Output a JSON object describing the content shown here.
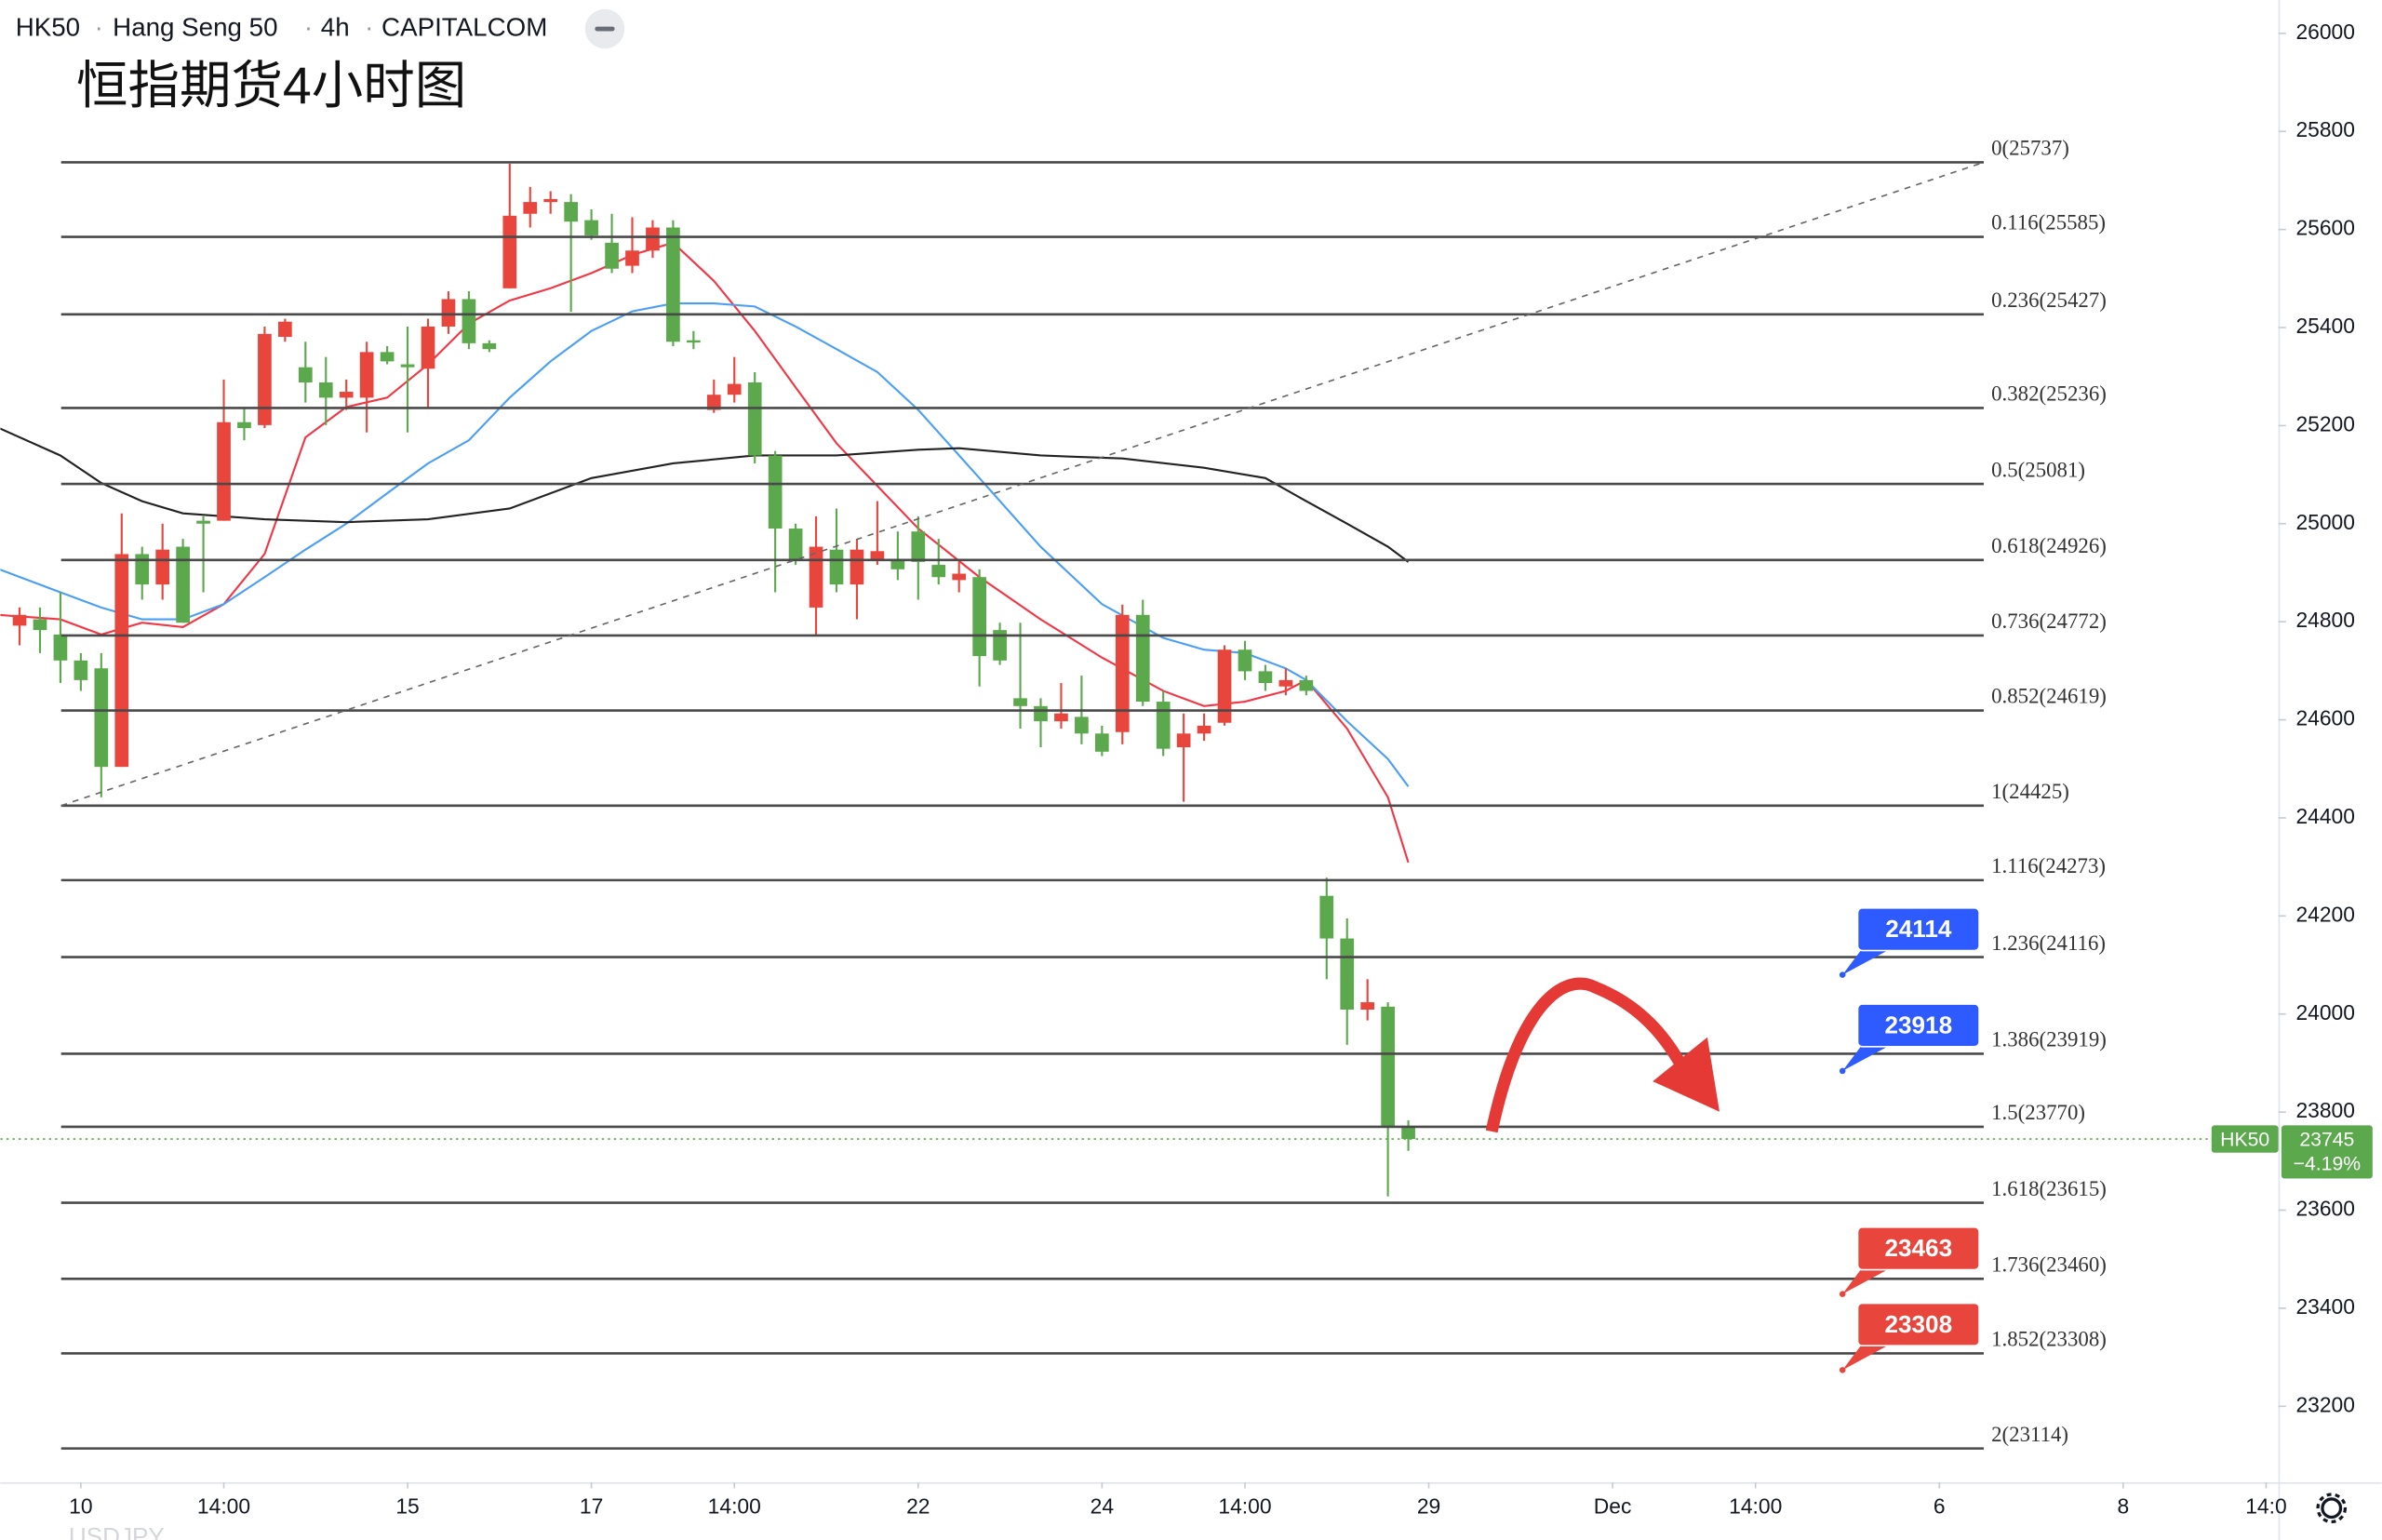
{
  "header": {
    "symbol": "HK50",
    "name": "Hang Seng 50",
    "interval": "4h",
    "source": "CAPITALCOM",
    "footer_text": "USDJPY"
  },
  "chart_data": {
    "type": "candlestick",
    "title": "恒指期货4小时图",
    "up_color": "#e8453c",
    "down_color": "#5ba84d",
    "xlim": [
      -3.94,
      107.6
    ],
    "ylim": [
      23045,
      26068
    ],
    "xticks": [
      {
        "value": 0,
        "label": "10"
      },
      {
        "value": 7,
        "label": "14:00"
      },
      {
        "value": 16,
        "label": "15"
      },
      {
        "value": 25,
        "label": "17"
      },
      {
        "value": 32,
        "label": "14:00"
      },
      {
        "value": 41,
        "label": "22"
      },
      {
        "value": 50,
        "label": "24"
      },
      {
        "value": 57,
        "label": "14:00"
      },
      {
        "value": 66,
        "label": "29"
      },
      {
        "value": 75,
        "label": "Dec"
      },
      {
        "value": 82,
        "label": "14:00"
      },
      {
        "value": 91,
        "label": "6"
      },
      {
        "value": 100,
        "label": "8"
      },
      {
        "value": 107,
        "label": "14:0"
      }
    ],
    "yticks": [
      23200,
      23400,
      23600,
      23800,
      24000,
      24200,
      24400,
      24600,
      24800,
      25000,
      25200,
      25400,
      25600,
      25800,
      26000
    ],
    "x": [
      -3,
      -2,
      -1,
      0,
      1,
      2,
      3,
      4,
      5,
      6,
      7,
      8,
      9,
      10,
      11,
      12,
      13,
      14,
      15,
      16,
      17,
      18,
      19,
      20,
      21,
      22,
      23,
      24,
      25,
      26,
      27,
      28,
      29,
      30,
      31,
      32,
      33,
      34,
      35,
      36,
      37,
      38,
      39,
      40,
      41,
      42,
      43,
      44,
      45,
      46,
      47,
      48,
      49,
      50,
      51,
      52,
      53,
      54,
      55,
      56,
      57,
      58,
      59,
      60,
      61,
      62,
      63,
      64,
      65
    ],
    "open": [
      24792,
      24805,
      24774,
      24721,
      24705,
      24504,
      24938,
      24876,
      24953,
      25006,
      25006,
      25207,
      25201,
      25381,
      25319,
      25288,
      25257,
      25257,
      25350,
      25325,
      25316,
      25402,
      25458,
      25368,
      25480,
      25632,
      25656,
      25656,
      25619,
      25573,
      25526,
      25557,
      25604,
      25374,
      25232,
      25263,
      25288,
      25139,
      24990,
      24829,
      24947,
      24876,
      24928,
      24928,
      24984,
      24916,
      24885,
      24891,
      24783,
      24644,
      24628,
      24597,
      24606,
      24572,
      24575,
      24814,
      24637,
      24544,
      24572,
      24594,
      24743,
      24699,
      24668,
      24681,
      24241,
      24154,
      24009,
      24015,
      23770
    ],
    "high": [
      24829,
      24829,
      24860,
      24736,
      24736,
      25021,
      24953,
      25000,
      24969,
      25015,
      25294,
      25238,
      25402,
      25418,
      25371,
      25340,
      25294,
      25371,
      25362,
      25402,
      25418,
      25474,
      25474,
      25374,
      25734,
      25687,
      25678,
      25672,
      25641,
      25632,
      25625,
      25619,
      25619,
      25393,
      25294,
      25340,
      25309,
      25148,
      25000,
      25015,
      25031,
      24969,
      25046,
      24984,
      25015,
      24969,
      24922,
      24907,
      24798,
      24798,
      24644,
      24675,
      24690,
      24588,
      24835,
      24845,
      24659,
      24613,
      24613,
      24752,
      24761,
      24712,
      24705,
      24690,
      24278,
      24195,
      24071,
      24024,
      23783
    ],
    "low": [
      24752,
      24736,
      24675,
      24659,
      24442,
      24504,
      24845,
      24845,
      24798,
      24860,
      25006,
      25170,
      25195,
      25371,
      25247,
      25201,
      25232,
      25186,
      25325,
      25186,
      25238,
      25387,
      25356,
      25350,
      25480,
      25604,
      25632,
      25432,
      25579,
      25511,
      25511,
      25542,
      25362,
      25356,
      25226,
      25247,
      25123,
      24860,
      24916,
      24774,
      24860,
      24805,
      24916,
      24885,
      24845,
      24876,
      24860,
      24668,
      24712,
      24582,
      24544,
      24582,
      24550,
      24526,
      24550,
      24628,
      24526,
      24433,
      24557,
      24588,
      24681,
      24659,
      24650,
      24650,
      24071,
      23937,
      23987,
      23628,
      23721
    ],
    "close": [
      24814,
      24783,
      24721,
      24681,
      24504,
      24938,
      24876,
      24947,
      24798,
      25000,
      25207,
      25195,
      25387,
      25412,
      25288,
      25257,
      25269,
      25350,
      25331,
      25319,
      25402,
      25458,
      25368,
      25356,
      25628,
      25656,
      25662,
      25616,
      25588,
      25520,
      25557,
      25604,
      25371,
      25371,
      25263,
      25285,
      25139,
      24990,
      24928,
      24953,
      24876,
      24947,
      24944,
      24907,
      24922,
      24891,
      24898,
      24730,
      24721,
      24628,
      24597,
      24613,
      24572,
      24535,
      24814,
      24637,
      24541,
      24572,
      24588,
      24743,
      24699,
      24675,
      24681,
      24659,
      24154,
      24009,
      24024,
      23770,
      23745
    ],
    "overlays": [
      {
        "color": "#f23645",
        "x": [
          -4,
          -1,
          1,
          3,
          5,
          7,
          9,
          11,
          13,
          15,
          17,
          19,
          21,
          23,
          25,
          27,
          29,
          31,
          33,
          35,
          37,
          39,
          41,
          44,
          47,
          50,
          53,
          55,
          57,
          59,
          60,
          62,
          64,
          65
        ],
        "values": [
          24814,
          24805,
          24774,
          24798,
          24789,
          24836,
          24938,
          25176,
          25238,
          25257,
          25325,
          25408,
          25455,
          25480,
          25511,
          25548,
          25573,
          25495,
          25393,
          25278,
          25164,
          25077,
          24990,
          24891,
          24805,
          24727,
          24659,
          24628,
          24637,
          24659,
          24681,
          24582,
          24442,
          24309
        ]
      },
      {
        "color": "#4a9ff5",
        "x": [
          -4,
          -1,
          1,
          3,
          5,
          7,
          9,
          11,
          13,
          15,
          17,
          19,
          21,
          23,
          25,
          27,
          29,
          31,
          33,
          35,
          37,
          39,
          41,
          44,
          47,
          50,
          53,
          55,
          57,
          59,
          60,
          62,
          64,
          65
        ],
        "values": [
          24907,
          24860,
          24829,
          24805,
          24805,
          24836,
          24891,
          24947,
          25000,
          25062,
          25123,
          25170,
          25257,
          25331,
          25393,
          25433,
          25449,
          25449,
          25443,
          25402,
          25356,
          25309,
          25232,
          25093,
          24953,
          24836,
          24767,
          24743,
          24736,
          24705,
          24681,
          24597,
          24520,
          24464
        ]
      },
      {
        "color": "#222222",
        "x": [
          -4,
          -1,
          1,
          3,
          5,
          9,
          13,
          17,
          21,
          25,
          29,
          33,
          37,
          41,
          43,
          47,
          51,
          55,
          58,
          60,
          62,
          64,
          65
        ],
        "values": [
          25195,
          25139,
          25083,
          25046,
          25021,
          25009,
          25003,
          25009,
          25031,
          25093,
          25123,
          25139,
          25139,
          25151,
          25154,
          25139,
          25133,
          25114,
          25093,
          25046,
          25000,
          24953,
          24922
        ]
      }
    ],
    "fib_levels": [
      {
        "value": 25737,
        "label": "0(25737)"
      },
      {
        "value": 25585,
        "label": "0.116(25585)"
      },
      {
        "value": 25427,
        "label": "0.236(25427)"
      },
      {
        "value": 25236,
        "label": "0.382(25236)"
      },
      {
        "value": 25081,
        "label": "0.5(25081)"
      },
      {
        "value": 24926,
        "label": "0.618(24926)"
      },
      {
        "value": 24772,
        "label": "0.736(24772)"
      },
      {
        "value": 24619,
        "label": "0.852(24619)"
      },
      {
        "value": 24425,
        "label": "1(24425)"
      },
      {
        "value": 24273,
        "label": "1.116(24273)"
      },
      {
        "value": 24116,
        "label": "1.236(24116)"
      },
      {
        "value": 23919,
        "label": "1.386(23919)"
      },
      {
        "value": 23770,
        "label": "1.5(23770)"
      },
      {
        "value": 23615,
        "label": "1.618(23615)"
      },
      {
        "value": 23460,
        "label": "1.736(23460)"
      },
      {
        "value": 23308,
        "label": "1.852(23308)"
      },
      {
        "value": 23114,
        "label": "2(23114)"
      }
    ],
    "callouts": [
      {
        "value": 24114,
        "color": "#2e5bff"
      },
      {
        "value": 23918,
        "color": "#2e5bff"
      },
      {
        "value": 23463,
        "color": "#e8453c"
      },
      {
        "value": 23308,
        "color": "#e8453c"
      }
    ],
    "price_tag": {
      "symbol": "HK50",
      "price": 23745,
      "change": "−4.19%",
      "color": "#5ba84d"
    }
  }
}
